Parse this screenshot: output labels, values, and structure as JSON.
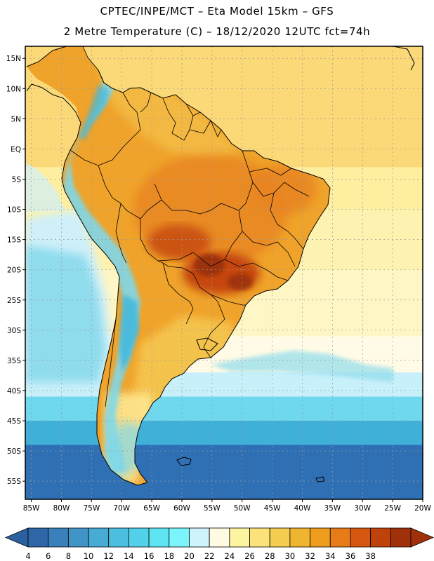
{
  "header": {
    "title_line1": "CPTEC/INPE/MCT –  Eta Model 15km – GFS",
    "title_line2": "2 Metre Temperature (C) – 18/12/2020 12UTC fct=74h"
  },
  "map": {
    "region": "South America",
    "lon_range": [
      -86,
      -20
    ],
    "lat_range": [
      -58,
      17
    ],
    "lon_ticks": [
      {
        "value": -85,
        "label": "85W"
      },
      {
        "value": -80,
        "label": "80W"
      },
      {
        "value": -75,
        "label": "75W"
      },
      {
        "value": -70,
        "label": "70W"
      },
      {
        "value": -65,
        "label": "65W"
      },
      {
        "value": -60,
        "label": "60W"
      },
      {
        "value": -55,
        "label": "55W"
      },
      {
        "value": -50,
        "label": "50W"
      },
      {
        "value": -45,
        "label": "45W"
      },
      {
        "value": -40,
        "label": "40W"
      },
      {
        "value": -35,
        "label": "35W"
      },
      {
        "value": -30,
        "label": "30W"
      },
      {
        "value": -25,
        "label": "25W"
      },
      {
        "value": -20,
        "label": "20W"
      }
    ],
    "lat_ticks": [
      {
        "value": 15,
        "label": "15N"
      },
      {
        "value": 10,
        "label": "10N"
      },
      {
        "value": 5,
        "label": "5N"
      },
      {
        "value": 0,
        "label": "EQ"
      },
      {
        "value": -5,
        "label": "5S"
      },
      {
        "value": -10,
        "label": "10S"
      },
      {
        "value": -15,
        "label": "15S"
      },
      {
        "value": -20,
        "label": "20S"
      },
      {
        "value": -25,
        "label": "25S"
      },
      {
        "value": -30,
        "label": "30S"
      },
      {
        "value": -35,
        "label": "35S"
      },
      {
        "value": -40,
        "label": "40S"
      },
      {
        "value": -45,
        "label": "45S"
      },
      {
        "value": -50,
        "label": "50S"
      },
      {
        "value": -55,
        "label": "55S"
      }
    ],
    "colors": {
      "grid": "#9a9a9a",
      "coast": "#000000",
      "ocean_bands": [
        {
          "lat_top": 17,
          "lat_bottom": -3,
          "color": "#fbd978"
        },
        {
          "lat_top": -3,
          "lat_bottom": -10,
          "color": "#fdeea0"
        },
        {
          "lat_top": -10,
          "lat_bottom": -20,
          "color": "#fdf2b0"
        },
        {
          "lat_top": -20,
          "lat_bottom": -31,
          "color": "#fef6c4"
        },
        {
          "lat_top": -31,
          "lat_bottom": -37,
          "color": "#fffbe6"
        },
        {
          "lat_top": -37,
          "lat_bottom": -41,
          "color": "#c8f0fa"
        },
        {
          "lat_top": -41,
          "lat_bottom": -45,
          "color": "#6fd8ee"
        },
        {
          "lat_top": -45,
          "lat_bottom": -49,
          "color": "#3fb0d8"
        },
        {
          "lat_top": -49,
          "lat_bottom": -58,
          "color": "#2f6fb4"
        }
      ],
      "pacific_cool": "#cfeff9",
      "pacific_cooler": "#8fdced",
      "land_base": "#f0a32a",
      "land_warm": "#e88420",
      "land_hot": "#c2420c",
      "land_hottest": "#9a3008",
      "land_mild": "#f6cb55",
      "land_cool_south": "#fde690",
      "andes_cool": "#7fd8ea",
      "andes_cold": "#3fb8de"
    }
  },
  "colorbar": {
    "values": [
      "4",
      "6",
      "8",
      "10",
      "12",
      "14",
      "16",
      "18",
      "20",
      "22",
      "24",
      "26",
      "28",
      "30",
      "32",
      "34",
      "36",
      "38"
    ],
    "colors": [
      "#2f66a8",
      "#3a80ba",
      "#4195c6",
      "#47abd4",
      "#4bbfdf",
      "#52d2ea",
      "#5fe4f2",
      "#7bf4fb",
      "#cff3fb",
      "#fffbe2",
      "#fdf4a0",
      "#fbe37a",
      "#f4cc50",
      "#efb531",
      "#ee9d1d",
      "#e67c17",
      "#d55710",
      "#c0420b",
      "#a0300a"
    ],
    "below_color": "#2b5fa0",
    "above_color": "#a0300a"
  }
}
